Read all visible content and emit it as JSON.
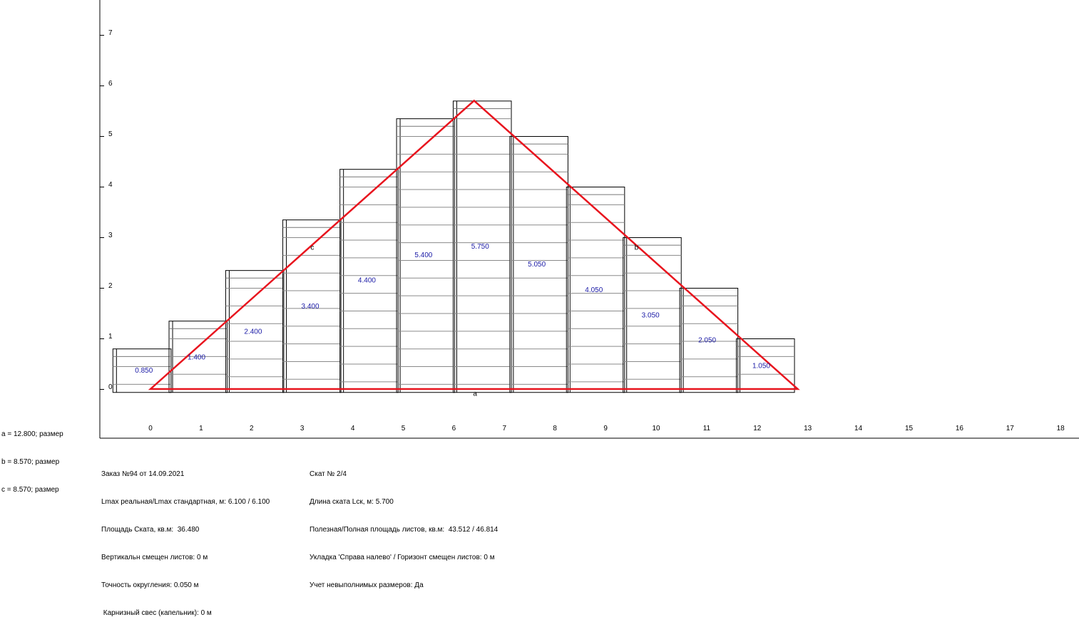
{
  "chart_data": {
    "type": "diagram",
    "x_ticks": [
      "0",
      "1",
      "2",
      "3",
      "4",
      "5",
      "6",
      "7",
      "8",
      "9",
      "10",
      "11",
      "12",
      "13",
      "14",
      "15",
      "16",
      "17",
      "18"
    ],
    "y_ticks": [
      "0",
      "1",
      "2",
      "3",
      "4",
      "5",
      "6",
      "7"
    ],
    "sheets": [
      {
        "x0": -0.75,
        "x1": 0.4,
        "top": 0.8,
        "label": "0.850",
        "label_x": -0.13,
        "label_y": 0.38
      },
      {
        "x0": 0.36,
        "x1": 1.51,
        "top": 1.35,
        "label": "1.400",
        "label_x": 0.91,
        "label_y": 0.64
      },
      {
        "x0": 1.48,
        "x1": 2.63,
        "top": 2.35,
        "label": "2.400",
        "label_x": 2.03,
        "label_y": 1.15
      },
      {
        "x0": 2.61,
        "x1": 3.76,
        "top": 3.35,
        "label": "3.400",
        "label_x": 3.16,
        "label_y": 1.65
      },
      {
        "x0": 3.74,
        "x1": 4.89,
        "top": 4.35,
        "label": "4.400",
        "label_x": 4.28,
        "label_y": 2.16
      },
      {
        "x0": 4.86,
        "x1": 6.01,
        "top": 5.35,
        "label": "5.400",
        "label_x": 5.4,
        "label_y": 2.66
      },
      {
        "x0": 5.98,
        "x1": 7.13,
        "top": 5.7,
        "label": "5.750",
        "label_x": 6.52,
        "label_y": 2.83
      },
      {
        "x0": 7.1,
        "x1": 8.25,
        "top": 5.0,
        "label": "5.050",
        "label_x": 7.64,
        "label_y": 2.48
      },
      {
        "x0": 8.22,
        "x1": 9.37,
        "top": 4.0,
        "label": "4.050",
        "label_x": 8.77,
        "label_y": 1.97
      },
      {
        "x0": 9.34,
        "x1": 10.49,
        "top": 3.0,
        "label": "3.050",
        "label_x": 9.89,
        "label_y": 1.47
      },
      {
        "x0": 10.46,
        "x1": 11.61,
        "top": 2.0,
        "label": "2.050",
        "label_x": 11.01,
        "label_y": 0.98
      },
      {
        "x0": 11.58,
        "x1": 12.73,
        "top": 1.0,
        "label": "1.050",
        "label_x": 12.08,
        "label_y": 0.47
      }
    ],
    "triangle": {
      "a": [
        0,
        0
      ],
      "b": [
        12.8,
        0
      ],
      "apex": [
        6.4,
        5.7
      ]
    },
    "vertex_labels": [
      {
        "text": "a",
        "x": 6.42,
        "y": -0.08
      },
      {
        "text": "b",
        "x": 9.61,
        "y": 2.81
      },
      {
        "text": "c",
        "x": 3.2,
        "y": 2.81
      }
    ],
    "colors": {
      "outline": "#e8141e",
      "sheet": "#000000",
      "label": "#1a1aa6"
    }
  },
  "dimensions": [
    "a = 12.800; размер",
    "b = 8.570; размер",
    "c = 8.570; размер"
  ],
  "info_left": [
    "Заказ №94 от 14.09.2021",
    "Lmax реальная/Lmax стандартная, м: 6.100 / 6.100",
    "Площадь Ската, кв.м:  36.480",
    "Вертикальн смещен листов: 0 м",
    "Точность округления: 0.050 м",
    " Карнизный свес (капельник): 0 м"
  ],
  "info_right": [
    "Скат № 2/4",
    "Длина ската Lск, м: 5.700",
    "Полезная/Полная площадь листов, кв.м:  43.512 / 46.814",
    "Укладка 'Справа налево' / Горизонт смещен листов: 0 м",
    "Учет невыполнимых размеров: Да"
  ]
}
